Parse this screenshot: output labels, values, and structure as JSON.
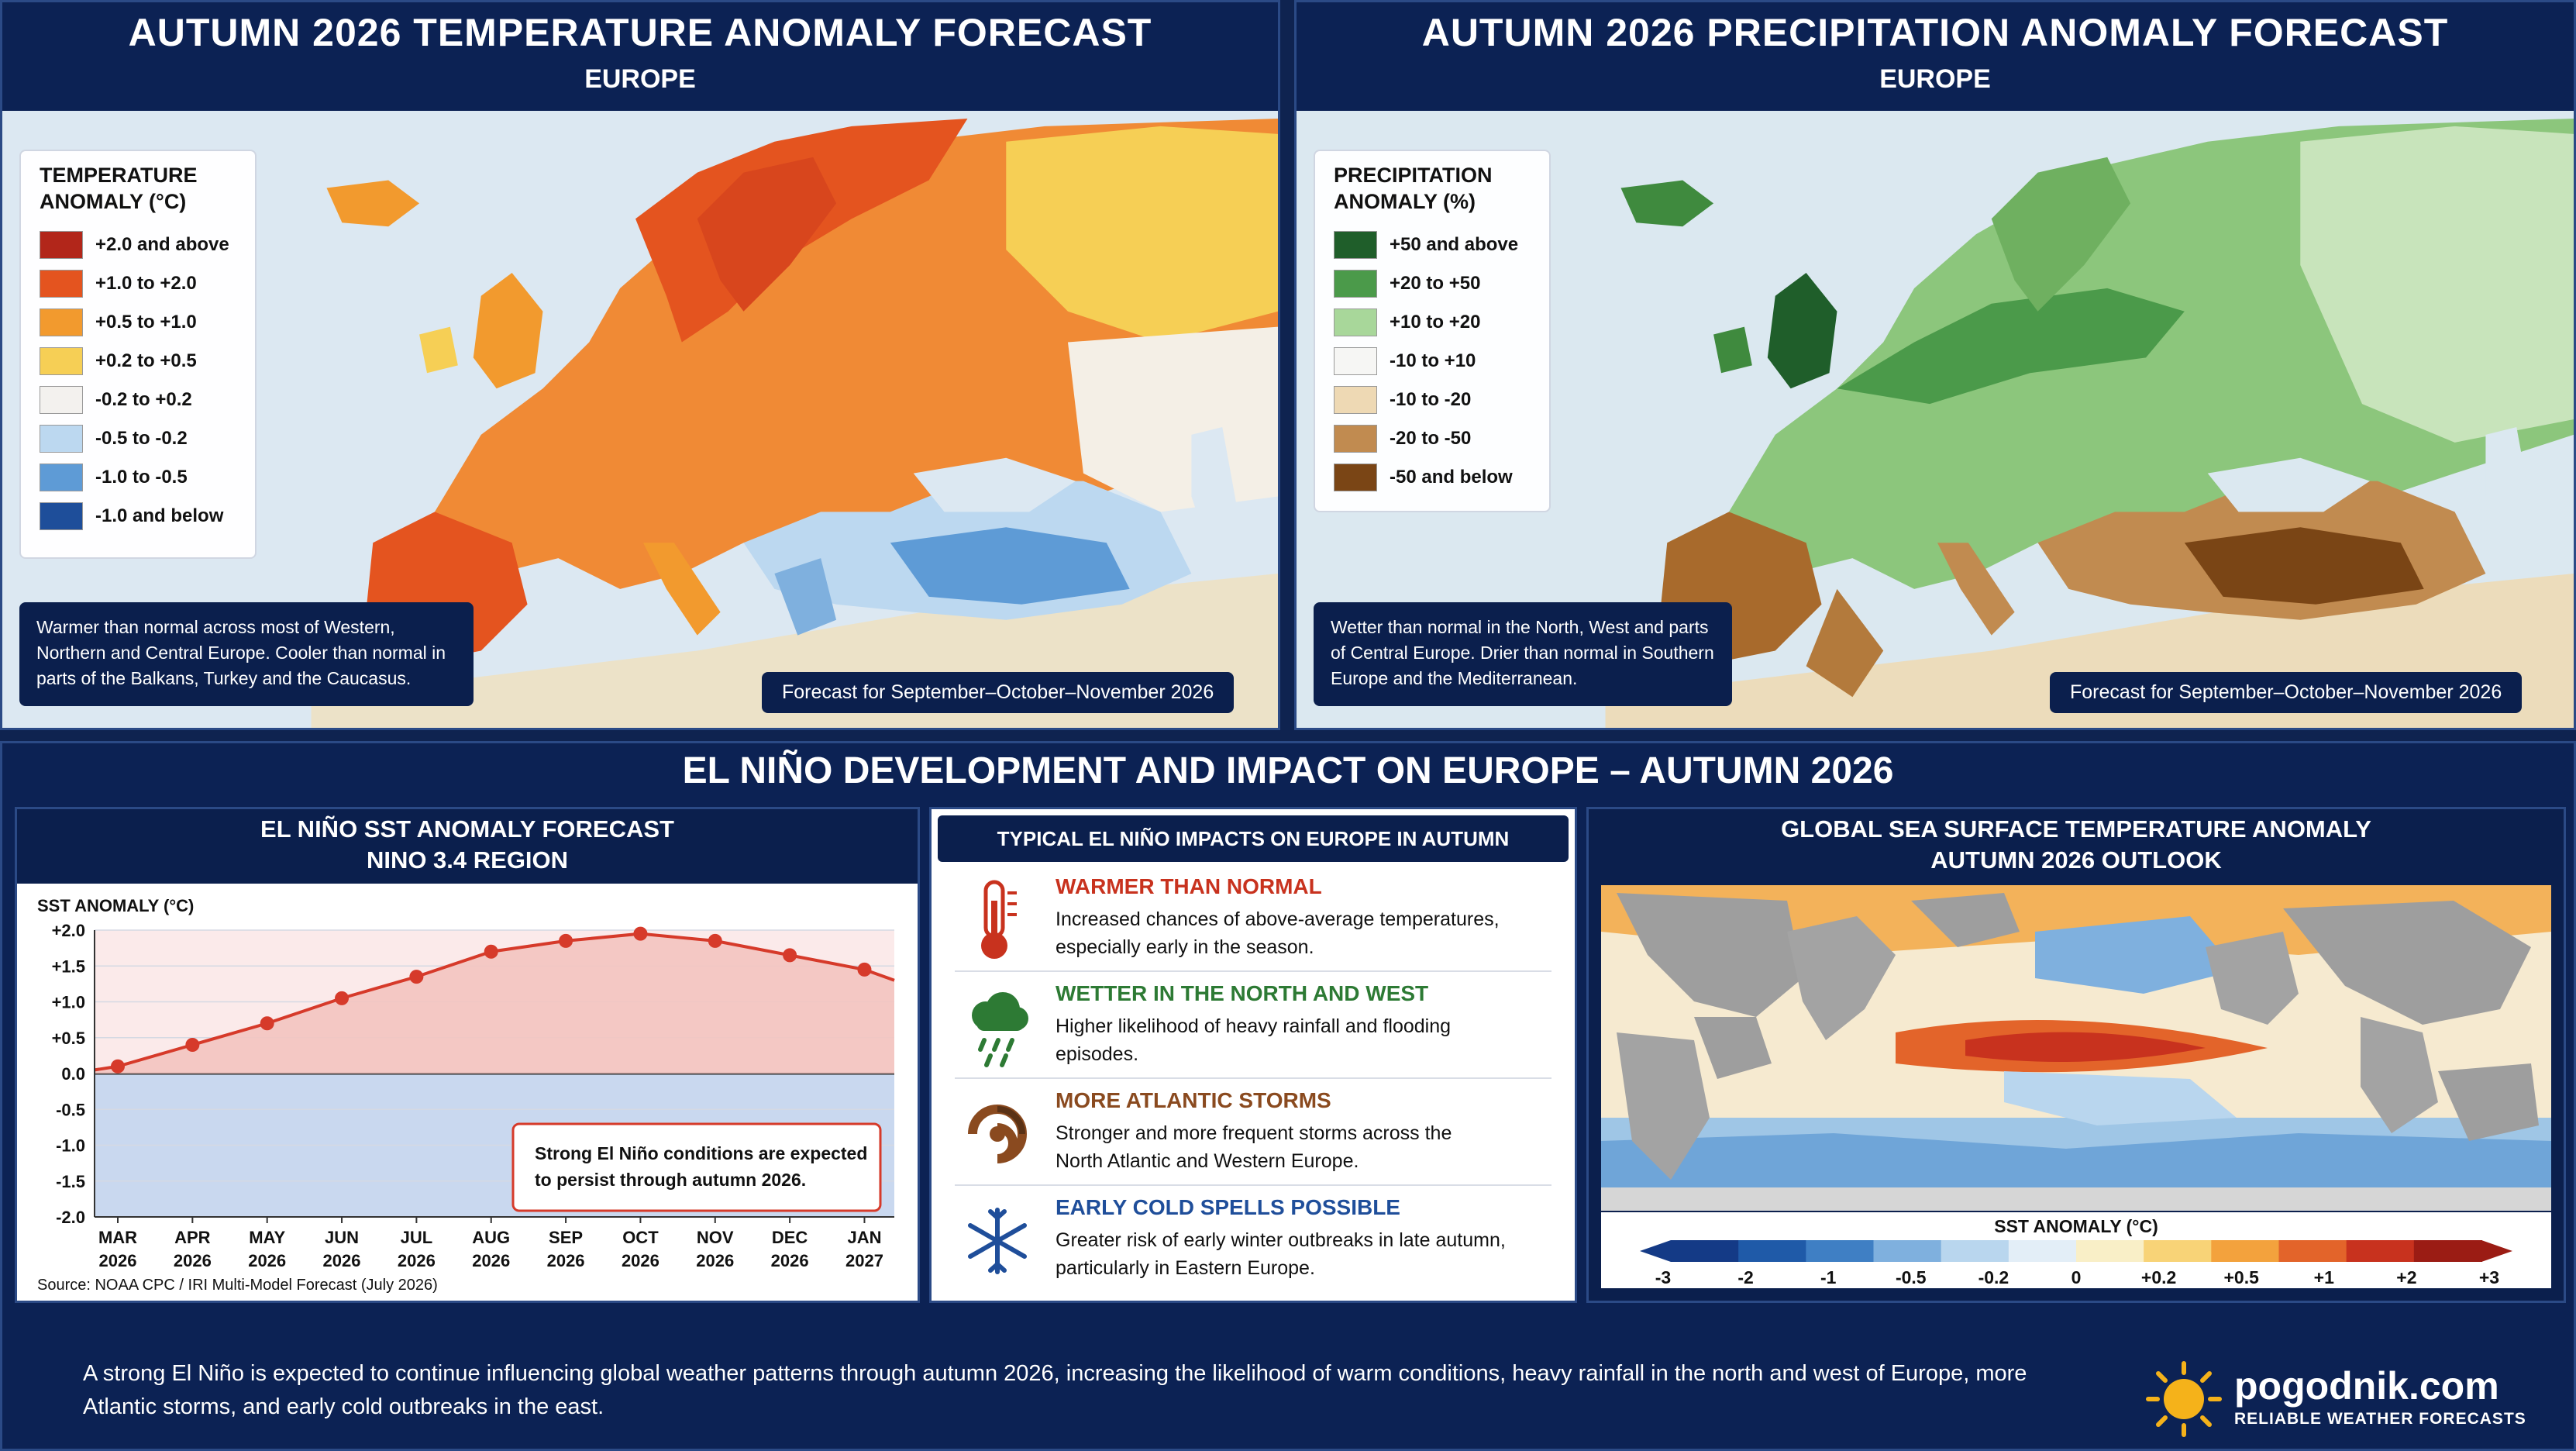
{
  "temp_map": {
    "title": "AUTUMN 2026 TEMPERATURE ANOMALY FORECAST",
    "subtitle": "EUROPE",
    "legend_title_1": "TEMPERATURE",
    "legend_title_2": "ANOMALY (°C)",
    "legend": [
      {
        "label": "+2.0 and above",
        "color": "#b2261a"
      },
      {
        "label": "+1.0 to +2.0",
        "color": "#e4541f"
      },
      {
        "label": "+0.5 to +1.0",
        "color": "#f29a2e"
      },
      {
        "label": "+0.2 to +0.5",
        "color": "#f6cf55"
      },
      {
        "label": "-0.2 to +0.2",
        "color": "#f3f1ee"
      },
      {
        "label": "-0.5 to -0.2",
        "color": "#bcd8f0"
      },
      {
        "label": "-1.0 to -0.5",
        "color": "#5e9bd6"
      },
      {
        "label": "-1.0 and below",
        "color": "#1e4e9a"
      }
    ],
    "note": "Warmer than normal across most of Western, Northern and Central Europe. Cooler than normal in parts of the Balkans, Turkey and the Caucasus.",
    "forecast_period": "Forecast for September–October–November 2026"
  },
  "precip_map": {
    "title": "AUTUMN 2026 PRECIPITATION ANOMALY FORECAST",
    "subtitle": "EUROPE",
    "legend_title_1": "PRECIPITATION",
    "legend_title_2": "ANOMALY (%)",
    "legend": [
      {
        "label": "+50 and above",
        "color": "#1f5e2a"
      },
      {
        "label": "+20 to +50",
        "color": "#4b9a4a"
      },
      {
        "label": "+10 to +20",
        "color": "#a8d79a"
      },
      {
        "label": "-10 to +10",
        "color": "#f6f6f4"
      },
      {
        "label": "-10 to -20",
        "color": "#eed9b4"
      },
      {
        "label": "-20 to -50",
        "color": "#c18b50"
      },
      {
        "label": "-50 and below",
        "color": "#7a4515"
      }
    ],
    "note": "Wetter than normal in the North, West and parts of Central Europe. Drier than normal in Southern Europe and the Mediterranean.",
    "forecast_period": "Forecast for September–October–November 2026"
  },
  "bottom": {
    "title": "EL NIÑO DEVELOPMENT AND IMPACT ON EUROPE – AUTUMN 2026",
    "footer": "A strong El Niño is expected to continue influencing global weather patterns through autumn 2026, increasing the likelihood of warm conditions, heavy rainfall in the north and west of Europe, more Atlantic storms, and early cold outbreaks in the east."
  },
  "sst_chart_panel": {
    "title_1": "EL NIÑO SST ANOMALY FORECAST",
    "title_2": "NINO 3.4 REGION",
    "annotation_1": "Strong El Niño conditions are expected",
    "annotation_2": "to persist through autumn 2026.",
    "source": "Source: NOAA CPC / IRI Multi-Model Forecast (July 2026)"
  },
  "chart_data": {
    "type": "area",
    "ylabel": "SST ANOMALY (°C)",
    "xlabel": "",
    "categories": [
      "MAR 2026",
      "APR 2026",
      "MAY 2026",
      "JUN 2026",
      "JUL 2026",
      "AUG 2026",
      "SEP 2026",
      "OCT 2026",
      "NOV 2026",
      "DEC 2026",
      "JAN 2027"
    ],
    "category_lines": [
      [
        "MAR",
        "2026"
      ],
      [
        "APR",
        "2026"
      ],
      [
        "MAY",
        "2026"
      ],
      [
        "JUN",
        "2026"
      ],
      [
        "JUL",
        "2026"
      ],
      [
        "AUG",
        "2026"
      ],
      [
        "SEP",
        "2026"
      ],
      [
        "OCT",
        "2026"
      ],
      [
        "NOV",
        "2026"
      ],
      [
        "DEC",
        "2026"
      ],
      [
        "JAN",
        "2027"
      ]
    ],
    "values": [
      0.1,
      0.4,
      0.7,
      1.05,
      1.35,
      1.7,
      1.85,
      1.95,
      1.85,
      1.65,
      1.45
    ],
    "ylim": [
      -2.0,
      2.0
    ],
    "yticks": [
      "+2.0",
      "+1.5",
      "+1.0",
      "+0.5",
      "0.0",
      "-0.5",
      "-1.0",
      "-1.5",
      "-2.0"
    ],
    "ytick_values": [
      2.0,
      1.5,
      1.0,
      0.5,
      0.0,
      -0.5,
      -1.0,
      -1.5,
      -2.0
    ],
    "grid": true,
    "colors": {
      "line": "#d63a2a",
      "above": "#f3c4c0",
      "below": "#c9d8ef"
    }
  },
  "impacts": {
    "title": "TYPICAL EL NIÑO IMPACTS ON EUROPE IN AUTUMN",
    "items": [
      {
        "icon": "thermometer-icon",
        "title": "WARMER THAN NORMAL",
        "color": "#c8321e",
        "line1": "Increased chances of above-average temperatures,",
        "line2": "especially early in the season."
      },
      {
        "icon": "rain-cloud-icon",
        "title": "WETTER IN THE NORTH AND WEST",
        "color": "#2d7a34",
        "line1": "Higher likelihood of heavy rainfall and flooding",
        "line2": "episodes."
      },
      {
        "icon": "storm-icon",
        "title": "MORE ATLANTIC STORMS",
        "color": "#8a4a1f",
        "line1": "Stronger and more frequent storms across the",
        "line2": "North Atlantic and Western Europe."
      },
      {
        "icon": "snowflake-icon",
        "title": "EARLY COLD SPELLS POSSIBLE",
        "color": "#1f4e9a",
        "line1": "Greater risk of early winter outbreaks in late autumn,",
        "line2": "particularly in Eastern Europe."
      }
    ]
  },
  "global_sst": {
    "title_1": "GLOBAL SEA SURFACE TEMPERATURE ANOMALY",
    "title_2": "AUTUMN 2026 OUTLOOK",
    "scale_title": "SST ANOMALY (°C)",
    "scale_labels": [
      "-3",
      "-2",
      "-1",
      "-0.5",
      "-0.2",
      "0",
      "+0.2",
      "+0.5",
      "+1",
      "+2",
      "+3"
    ],
    "scale_colors": [
      "#143a86",
      "#1f5aa8",
      "#3f7fc4",
      "#7fb0de",
      "#b9d6ee",
      "#e3eef7",
      "#f9efc7",
      "#f8d377",
      "#f3a23d",
      "#e3642a",
      "#c8321e",
      "#9b1c14"
    ]
  },
  "logo": {
    "name": "pogodnik.com",
    "tagline": "RELIABLE WEATHER FORECASTS"
  }
}
